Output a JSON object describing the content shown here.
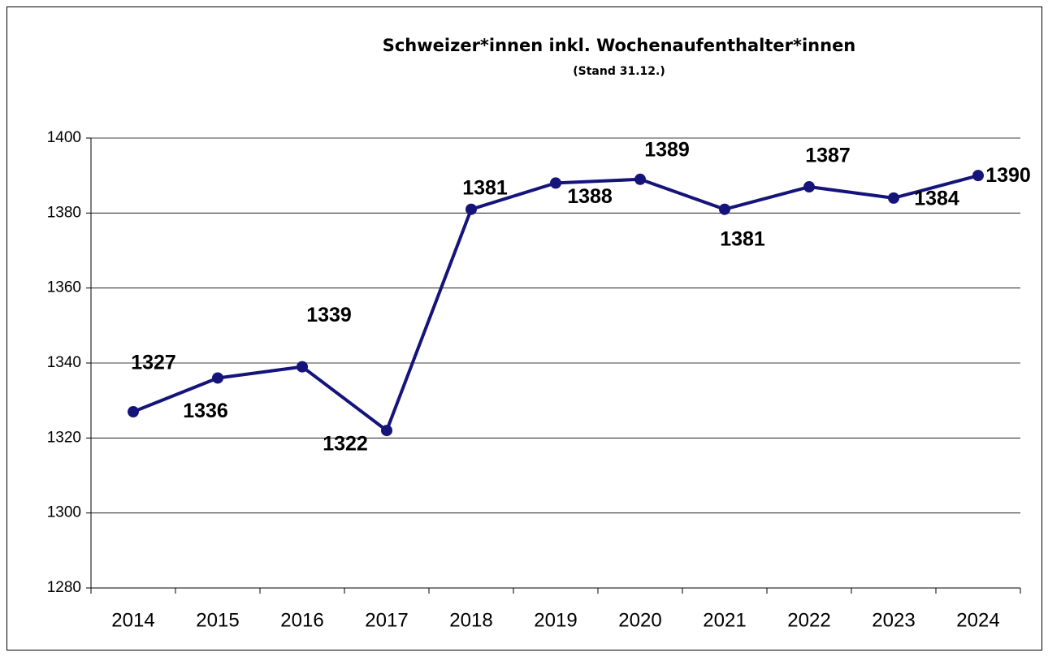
{
  "chart_data": {
    "type": "line",
    "title": "Schweizer*innen inkl. Wochenaufenthalter*innen",
    "subtitle": "(Stand 31.12.)",
    "categories": [
      "2014",
      "2015",
      "2016",
      "2017",
      "2018",
      "2019",
      "2020",
      "2021",
      "2022",
      "2023",
      "2024"
    ],
    "series": [
      {
        "name": "Schweizer*innen",
        "color": "#14147a",
        "values": [
          1327,
          1336,
          1339,
          1322,
          1381,
          1388,
          1389,
          1381,
          1387,
          1384,
          1390
        ]
      }
    ],
    "ylim": [
      1280,
      1400
    ],
    "yticks": [
      1280,
      1300,
      1320,
      1340,
      1360,
      1380,
      1400
    ],
    "grid": true
  }
}
